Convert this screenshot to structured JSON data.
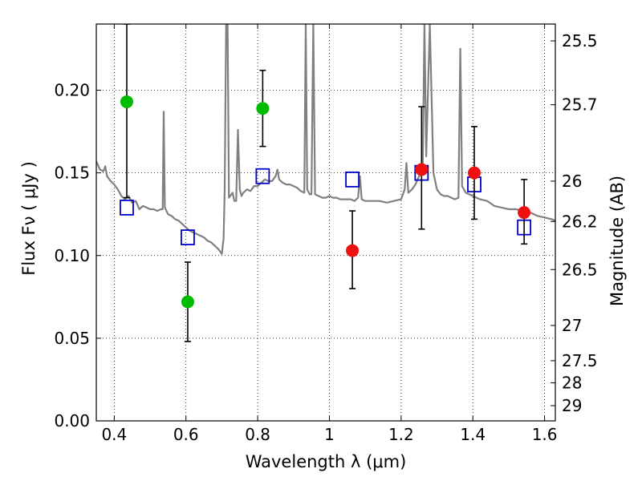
{
  "chart_data": {
    "type": "scatter",
    "title": "",
    "xlabel": "Wavelength  λ (μm)",
    "ylabel": "Flux  Fν  ( μJy )",
    "y2label": "Magnitude (AB)",
    "xlim": [
      0.35,
      1.63
    ],
    "ylim": [
      0.0,
      0.24
    ],
    "grid": true,
    "x_ticks": [
      0.4,
      0.6,
      0.8,
      1.0,
      1.2,
      1.4,
      1.6
    ],
    "x_tick_labels": [
      "0.4",
      "0.6",
      "0.8",
      "1",
      "1.2",
      "1.4",
      "1.6"
    ],
    "y_ticks": [
      0.0,
      0.05,
      0.1,
      0.15,
      0.2
    ],
    "y_tick_labels": [
      "0.00",
      "0.05",
      "0.10",
      "0.15",
      "0.20"
    ],
    "y2_ticks": [
      {
        "label": "25.5",
        "flux": 0.2298
      },
      {
        "label": "25.7",
        "flux": 0.1912
      },
      {
        "label": "26",
        "flux": 0.145
      },
      {
        "label": "26.2",
        "flux": 0.1206
      },
      {
        "label": "26.5",
        "flux": 0.0915
      },
      {
        "label": "27",
        "flux": 0.0577
      },
      {
        "label": "27.5",
        "flux": 0.0364
      },
      {
        "label": "28",
        "flux": 0.023
      },
      {
        "label": "29",
        "flux": 0.0092
      }
    ],
    "colors": {
      "spectrum": "#808080",
      "green": "#00bb00",
      "red": "#ee1111",
      "model": "#0000cc",
      "errorbar": "#000000"
    },
    "series": [
      {
        "marker": "circle",
        "color": "#00bb00",
        "points": [
          {
            "x": 0.435,
            "y": 0.193,
            "ylo": 0.135,
            "yhi": 0.24
          },
          {
            "x": 0.605,
            "y": 0.072,
            "ylo": 0.048,
            "yhi": 0.096
          },
          {
            "x": 0.814,
            "y": 0.189,
            "ylo": 0.166,
            "yhi": 0.212
          }
        ]
      },
      {
        "marker": "circle",
        "color": "#ee1111",
        "points": [
          {
            "x": 1.064,
            "y": 0.103,
            "ylo": 0.08,
            "yhi": 0.127
          },
          {
            "x": 1.257,
            "y": 0.152,
            "ylo": 0.116,
            "yhi": 0.19
          },
          {
            "x": 1.404,
            "y": 0.15,
            "ylo": 0.122,
            "yhi": 0.178
          },
          {
            "x": 1.543,
            "y": 0.126,
            "ylo": 0.107,
            "yhi": 0.146
          }
        ]
      },
      {
        "marker": "square",
        "color": "#0000cc",
        "points": [
          {
            "x": 0.435,
            "y": 0.129
          },
          {
            "x": 0.605,
            "y": 0.111
          },
          {
            "x": 0.814,
            "y": 0.148
          },
          {
            "x": 1.064,
            "y": 0.146
          },
          {
            "x": 1.257,
            "y": 0.15
          },
          {
            "x": 1.404,
            "y": 0.143
          },
          {
            "x": 1.543,
            "y": 0.117
          }
        ]
      },
      {
        "marker": "line",
        "color": "#808080",
        "points": [
          [
            0.35,
            0.157
          ],
          [
            0.36,
            0.152
          ],
          [
            0.37,
            0.151
          ],
          [
            0.375,
            0.154
          ],
          [
            0.38,
            0.148
          ],
          [
            0.39,
            0.145
          ],
          [
            0.4,
            0.143
          ],
          [
            0.41,
            0.14
          ],
          [
            0.42,
            0.136
          ],
          [
            0.43,
            0.134
          ],
          [
            0.44,
            0.136
          ],
          [
            0.45,
            0.132
          ],
          [
            0.46,
            0.133
          ],
          [
            0.47,
            0.128
          ],
          [
            0.48,
            0.13
          ],
          [
            0.49,
            0.129
          ],
          [
            0.5,
            0.128
          ],
          [
            0.51,
            0.128
          ],
          [
            0.52,
            0.127
          ],
          [
            0.53,
            0.128
          ],
          [
            0.535,
            0.128
          ],
          [
            0.538,
            0.187
          ],
          [
            0.541,
            0.129
          ],
          [
            0.55,
            0.125
          ],
          [
            0.56,
            0.124
          ],
          [
            0.57,
            0.122
          ],
          [
            0.58,
            0.121
          ],
          [
            0.59,
            0.119
          ],
          [
            0.6,
            0.117
          ],
          [
            0.61,
            0.115
          ],
          [
            0.62,
            0.114
          ],
          [
            0.63,
            0.113
          ],
          [
            0.64,
            0.112
          ],
          [
            0.65,
            0.111
          ],
          [
            0.66,
            0.109
          ],
          [
            0.67,
            0.108
          ],
          [
            0.68,
            0.106
          ],
          [
            0.69,
            0.104
          ],
          [
            0.7,
            0.101
          ],
          [
            0.705,
            0.11
          ],
          [
            0.708,
            0.14
          ],
          [
            0.712,
            0.24
          ],
          [
            0.716,
            0.24
          ],
          [
            0.72,
            0.135
          ],
          [
            0.73,
            0.138
          ],
          [
            0.735,
            0.133
          ],
          [
            0.74,
            0.133
          ],
          [
            0.745,
            0.176
          ],
          [
            0.75,
            0.14
          ],
          [
            0.755,
            0.136
          ],
          [
            0.76,
            0.138
          ],
          [
            0.77,
            0.14
          ],
          [
            0.78,
            0.139
          ],
          [
            0.79,
            0.142
          ],
          [
            0.8,
            0.142
          ],
          [
            0.81,
            0.144
          ],
          [
            0.82,
            0.146
          ],
          [
            0.83,
            0.145
          ],
          [
            0.84,
            0.145
          ],
          [
            0.85,
            0.148
          ],
          [
            0.855,
            0.152
          ],
          [
            0.86,
            0.146
          ],
          [
            0.87,
            0.144
          ],
          [
            0.88,
            0.143
          ],
          [
            0.89,
            0.143
          ],
          [
            0.9,
            0.142
          ],
          [
            0.91,
            0.141
          ],
          [
            0.92,
            0.139
          ],
          [
            0.93,
            0.138
          ],
          [
            0.934,
            0.24
          ],
          [
            0.938,
            0.14
          ],
          [
            0.945,
            0.137
          ],
          [
            0.95,
            0.137
          ],
          [
            0.955,
            0.24
          ],
          [
            0.96,
            0.137
          ],
          [
            0.97,
            0.136
          ],
          [
            0.98,
            0.135
          ],
          [
            0.99,
            0.135
          ],
          [
            1.0,
            0.136
          ],
          [
            1.01,
            0.135
          ],
          [
            1.02,
            0.135
          ],
          [
            1.03,
            0.134
          ],
          [
            1.04,
            0.134
          ],
          [
            1.05,
            0.134
          ],
          [
            1.06,
            0.134
          ],
          [
            1.07,
            0.133
          ],
          [
            1.08,
            0.135
          ],
          [
            1.085,
            0.148
          ],
          [
            1.09,
            0.134
          ],
          [
            1.1,
            0.133
          ],
          [
            1.12,
            0.133
          ],
          [
            1.14,
            0.133
          ],
          [
            1.16,
            0.132
          ],
          [
            1.18,
            0.133
          ],
          [
            1.2,
            0.134
          ],
          [
            1.21,
            0.14
          ],
          [
            1.215,
            0.156
          ],
          [
            1.22,
            0.138
          ],
          [
            1.23,
            0.14
          ],
          [
            1.24,
            0.143
          ],
          [
            1.25,
            0.148
          ],
          [
            1.26,
            0.152
          ],
          [
            1.265,
            0.24
          ],
          [
            1.27,
            0.16
          ],
          [
            1.28,
            0.24
          ],
          [
            1.29,
            0.15
          ],
          [
            1.3,
            0.14
          ],
          [
            1.31,
            0.137
          ],
          [
            1.32,
            0.136
          ],
          [
            1.33,
            0.136
          ],
          [
            1.34,
            0.135
          ],
          [
            1.35,
            0.134
          ],
          [
            1.36,
            0.135
          ],
          [
            1.365,
            0.225
          ],
          [
            1.37,
            0.142
          ],
          [
            1.38,
            0.138
          ],
          [
            1.39,
            0.137
          ],
          [
            1.4,
            0.136
          ],
          [
            1.42,
            0.134
          ],
          [
            1.44,
            0.133
          ],
          [
            1.46,
            0.13
          ],
          [
            1.48,
            0.129
          ],
          [
            1.5,
            0.128
          ],
          [
            1.52,
            0.128
          ],
          [
            1.54,
            0.127
          ],
          [
            1.56,
            0.126
          ],
          [
            1.58,
            0.124
          ],
          [
            1.6,
            0.123
          ],
          [
            1.62,
            0.122
          ],
          [
            1.63,
            0.121
          ]
        ]
      }
    ]
  }
}
